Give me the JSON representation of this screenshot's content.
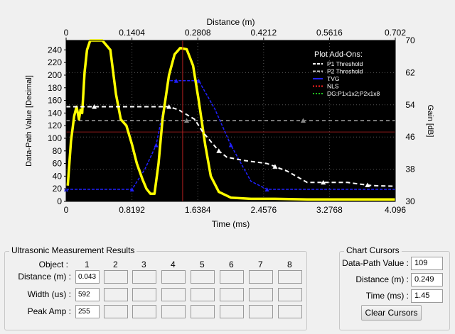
{
  "chart_data": {
    "type": "line",
    "top_axis": {
      "label": "Distance (m)",
      "min": 0,
      "max": 0.702,
      "ticks": [
        "0",
        "0.1404",
        "0.2808",
        "0.4212",
        "0.5616",
        "0.702"
      ]
    },
    "x_axis": {
      "label": "Time (ms)",
      "min": 0,
      "max": 4.096,
      "ticks": [
        "0",
        "0.8192",
        "1.6384",
        "2.4576",
        "3.2768",
        "4.096"
      ]
    },
    "y_axis": {
      "label": "Data-Path Value [Decimal]",
      "min": 0,
      "max": 255,
      "ticks": [
        0,
        20,
        40,
        60,
        80,
        100,
        120,
        140,
        160,
        180,
        200,
        220,
        240
      ]
    },
    "y2_axis": {
      "label": "Gain [dB]",
      "min": 30,
      "max": 70,
      "ticks": [
        30,
        38,
        46,
        54,
        62,
        70
      ]
    },
    "grid": true,
    "legend": {
      "title": "Plot Add-Ons:",
      "position": "top-right",
      "entries": [
        {
          "name": "P1 Threshold",
          "color": "#ffffff",
          "style": "dashed"
        },
        {
          "name": "P2 Threshold",
          "color": "#c8c8c8",
          "style": "dashed"
        },
        {
          "name": "TVG",
          "color": "#2020ff",
          "style": "solid"
        },
        {
          "name": "NLS",
          "color": "#ff2020",
          "style": "dotted"
        },
        {
          "name": "DG:P1x1x2;P2x1x8",
          "color": "#20c020",
          "style": "dotted"
        }
      ]
    },
    "series": [
      {
        "name": "Data-Path Value",
        "axis": "left",
        "color": "#ffff00",
        "x": [
          0.02,
          0.06,
          0.1,
          0.13,
          0.16,
          0.18,
          0.2,
          0.23,
          0.26,
          0.3,
          0.36,
          0.45,
          0.55,
          0.62,
          0.68,
          0.75,
          0.82,
          0.88,
          0.95,
          1.0,
          1.05,
          1.1,
          1.15,
          1.2,
          1.28,
          1.35,
          1.42,
          1.5,
          1.58,
          1.65,
          1.73,
          1.8,
          1.9,
          2.05,
          2.3,
          2.6,
          3.0,
          3.5,
          4.096
        ],
        "y": [
          25,
          95,
          135,
          150,
          130,
          145,
          140,
          205,
          240,
          255,
          255,
          255,
          240,
          170,
          130,
          120,
          90,
          60,
          35,
          20,
          12,
          12,
          60,
          130,
          200,
          233,
          243,
          241,
          215,
          160,
          90,
          40,
          15,
          6,
          4,
          4,
          3,
          3,
          3
        ]
      },
      {
        "name": "TVG",
        "axis": "right",
        "color": "#2020ff",
        "x": [
          0,
          0.15,
          0.82,
          0.98,
          1.12,
          1.28,
          1.37,
          1.5,
          1.65,
          1.85,
          2.05,
          2.3,
          2.5,
          4.096
        ],
        "y": [
          33,
          33,
          33,
          38,
          44,
          60,
          60,
          60,
          60,
          53,
          44,
          35,
          33,
          33
        ]
      },
      {
        "name": "P1 Threshold",
        "axis": "left",
        "color": "#ffffff",
        "x": [
          0,
          0.15,
          0.3,
          0.7,
          1.1,
          1.28,
          1.4,
          1.6,
          1.7,
          1.9,
          2.0,
          2.2,
          2.5,
          2.75,
          3.0,
          3.3,
          3.5,
          3.8,
          4.096
        ],
        "y": [
          150,
          150,
          150,
          150,
          150,
          150,
          145,
          130,
          110,
          80,
          70,
          65,
          60,
          48,
          30,
          30,
          30,
          25,
          24
        ]
      },
      {
        "name": "P2 Threshold",
        "axis": "left",
        "color": "#c8c8c8",
        "x": [
          0,
          1.5,
          2.0,
          2.5,
          3.0,
          3.5,
          4.096
        ],
        "y": [
          128,
          128,
          128,
          128,
          128,
          128,
          128
        ]
      }
    ],
    "cursor": {
      "x": 1.45,
      "y": 109
    }
  },
  "results": {
    "title": "Ultrasonic Measurement Results",
    "object_label": "Object :",
    "columns": [
      "1",
      "2",
      "3",
      "4",
      "5",
      "6",
      "7",
      "8"
    ],
    "rows": [
      {
        "label": "Distance (m) :",
        "values": [
          "0.043",
          "",
          "",
          "",
          "",
          "",
          "",
          ""
        ]
      },
      {
        "label": "Width (us) :",
        "values": [
          "592",
          "",
          "",
          "",
          "",
          "",
          "",
          ""
        ]
      },
      {
        "label": "Peak Amp :",
        "values": [
          "255",
          "",
          "",
          "",
          "",
          "",
          "",
          ""
        ]
      }
    ]
  },
  "cursors": {
    "title": "Chart Cursors",
    "fields": [
      {
        "label": "Data-Path Value :",
        "value": "109"
      },
      {
        "label": "Distance (m) :",
        "value": "0.249"
      },
      {
        "label": "Time (ms) :",
        "value": "1.45"
      }
    ],
    "clear_button": "Clear Cursors"
  }
}
